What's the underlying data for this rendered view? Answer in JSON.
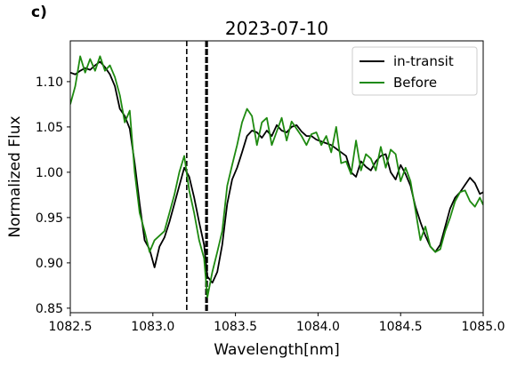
{
  "panel_label": "c)",
  "chart_data": {
    "type": "line",
    "title": "2023-07-10",
    "xlabel": "Wavelength[nm]",
    "ylabel": "Normalized Flux",
    "xlim": [
      1082.5,
      1085.0
    ],
    "ylim": [
      0.845,
      1.145
    ],
    "xticks": [
      1082.5,
      1083.0,
      1083.5,
      1084.0,
      1084.5,
      1085.0
    ],
    "xtick_labels": [
      "1082.5",
      "1083.0",
      "1083.5",
      "1084.0",
      "1084.5",
      "1085.0"
    ],
    "yticks": [
      0.85,
      0.9,
      0.95,
      1.0,
      1.05,
      1.1
    ],
    "ytick_labels": [
      "0.85",
      "0.90",
      "0.95",
      "1.00",
      "1.05",
      "1.10"
    ],
    "grid": false,
    "legend": "top-right",
    "vlines": [
      {
        "x": 1083.205,
        "style": "dashed",
        "color": "#000000",
        "width": 1.6
      },
      {
        "x": 1083.325,
        "style": "dashed",
        "color": "#000000",
        "width": 3.2
      }
    ],
    "series": [
      {
        "name": "in-transit",
        "color": "#000000",
        "x": [
          1082.5,
          1082.53,
          1082.56,
          1082.59,
          1082.62,
          1082.65,
          1082.68,
          1082.71,
          1082.74,
          1082.77,
          1082.8,
          1082.83,
          1082.86,
          1082.89,
          1082.92,
          1082.95,
          1082.98,
          1083.01,
          1083.04,
          1083.07,
          1083.1,
          1083.13,
          1083.16,
          1083.19,
          1083.22,
          1083.25,
          1083.28,
          1083.31,
          1083.33,
          1083.36,
          1083.39,
          1083.42,
          1083.45,
          1083.48,
          1083.51,
          1083.54,
          1083.57,
          1083.6,
          1083.63,
          1083.66,
          1083.69,
          1083.72,
          1083.75,
          1083.78,
          1083.81,
          1083.84,
          1083.87,
          1083.9,
          1083.93,
          1083.96,
          1083.99,
          1084.02,
          1084.05,
          1084.08,
          1084.11,
          1084.14,
          1084.17,
          1084.2,
          1084.23,
          1084.26,
          1084.29,
          1084.32,
          1084.35,
          1084.38,
          1084.41,
          1084.44,
          1084.47,
          1084.5,
          1084.53,
          1084.56,
          1084.59,
          1084.62,
          1084.65,
          1084.68,
          1084.71,
          1084.74,
          1084.77,
          1084.8,
          1084.83,
          1084.86,
          1084.89,
          1084.92,
          1084.95,
          1084.98,
          1085.0
        ],
        "y": [
          1.11,
          1.108,
          1.112,
          1.115,
          1.113,
          1.118,
          1.122,
          1.116,
          1.108,
          1.095,
          1.07,
          1.062,
          1.048,
          1.01,
          0.965,
          0.925,
          0.915,
          0.895,
          0.918,
          0.928,
          0.945,
          0.965,
          0.985,
          1.005,
          0.995,
          0.972,
          0.945,
          0.92,
          0.885,
          0.878,
          0.89,
          0.92,
          0.965,
          0.992,
          1.005,
          1.022,
          1.04,
          1.046,
          1.044,
          1.038,
          1.046,
          1.04,
          1.052,
          1.046,
          1.044,
          1.05,
          1.052,
          1.045,
          1.04,
          1.04,
          1.036,
          1.034,
          1.032,
          1.03,
          1.026,
          1.022,
          1.018,
          1.0,
          0.995,
          1.012,
          1.006,
          1.002,
          1.012,
          1.018,
          1.02,
          1.0,
          0.992,
          1.008,
          0.998,
          0.985,
          0.962,
          0.945,
          0.93,
          0.918,
          0.912,
          0.92,
          0.94,
          0.96,
          0.972,
          0.978,
          0.986,
          0.994,
          0.988,
          0.976,
          0.978
        ]
      },
      {
        "name": "Before",
        "color": "#1e8a10",
        "x": [
          1082.5,
          1082.53,
          1082.56,
          1082.59,
          1082.62,
          1082.65,
          1082.68,
          1082.71,
          1082.74,
          1082.77,
          1082.8,
          1082.83,
          1082.86,
          1082.89,
          1082.92,
          1082.95,
          1082.98,
          1083.01,
          1083.04,
          1083.07,
          1083.1,
          1083.13,
          1083.16,
          1083.19,
          1083.22,
          1083.25,
          1083.28,
          1083.31,
          1083.33,
          1083.36,
          1083.39,
          1083.42,
          1083.45,
          1083.48,
          1083.51,
          1083.54,
          1083.57,
          1083.6,
          1083.63,
          1083.66,
          1083.69,
          1083.72,
          1083.75,
          1083.78,
          1083.81,
          1083.84,
          1083.87,
          1083.9,
          1083.93,
          1083.96,
          1083.99,
          1084.02,
          1084.05,
          1084.08,
          1084.11,
          1084.14,
          1084.17,
          1084.2,
          1084.23,
          1084.26,
          1084.29,
          1084.32,
          1084.35,
          1084.38,
          1084.41,
          1084.44,
          1084.47,
          1084.5,
          1084.53,
          1084.56,
          1084.59,
          1084.62,
          1084.65,
          1084.68,
          1084.71,
          1084.74,
          1084.77,
          1084.8,
          1084.83,
          1084.86,
          1084.89,
          1084.92,
          1084.95,
          1084.98,
          1085.0
        ],
        "y": [
          1.075,
          1.095,
          1.128,
          1.11,
          1.125,
          1.112,
          1.128,
          1.112,
          1.118,
          1.105,
          1.085,
          1.055,
          1.068,
          1.0,
          0.955,
          0.935,
          0.912,
          0.925,
          0.93,
          0.935,
          0.955,
          0.975,
          1.0,
          1.018,
          0.98,
          0.955,
          0.925,
          0.905,
          0.862,
          0.89,
          0.912,
          0.935,
          0.985,
          1.008,
          1.03,
          1.055,
          1.07,
          1.062,
          1.03,
          1.055,
          1.06,
          1.03,
          1.045,
          1.06,
          1.035,
          1.056,
          1.048,
          1.04,
          1.03,
          1.042,
          1.044,
          1.03,
          1.04,
          1.022,
          1.05,
          1.01,
          1.012,
          0.998,
          1.035,
          1.002,
          1.02,
          1.015,
          1.002,
          1.028,
          1.005,
          1.025,
          1.02,
          0.99,
          1.005,
          0.99,
          0.958,
          0.925,
          0.94,
          0.918,
          0.912,
          0.915,
          0.935,
          0.95,
          0.968,
          0.978,
          0.98,
          0.968,
          0.962,
          0.972,
          0.964
        ]
      }
    ]
  }
}
